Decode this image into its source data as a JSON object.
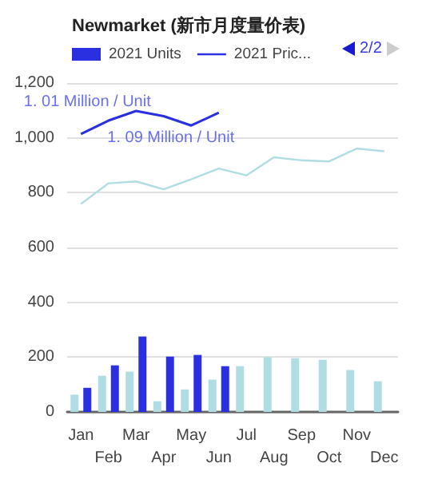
{
  "chart_data": {
    "type": "bar",
    "title": "Newmarket (新市月度量价表)",
    "categories": [
      "Jan",
      "Feb",
      "Mar",
      "Apr",
      "May",
      "Jun",
      "Jul",
      "Aug",
      "Sep",
      "Oct",
      "Nov",
      "Dec"
    ],
    "series": [
      {
        "color": "#b0dde4",
        "values": [
          63,
          132,
          147,
          39,
          82,
          118,
          167,
          200,
          196,
          190,
          153,
          112
        ]
      },
      {
        "name": "2021 Units",
        "color": "#2a2fe0",
        "values": [
          88,
          170,
          275,
          202,
          208,
          167,
          null,
          null,
          null,
          null,
          null,
          null
        ]
      },
      {
        "type": "line",
        "color": "#b0dde4",
        "values": [
          759,
          834,
          841,
          812,
          849,
          888,
          863,
          929,
          918,
          914,
          961,
          951
        ]
      },
      {
        "type": "line",
        "name": "2021 Pric...",
        "color": "#2a2fe0",
        "values": [
          1014,
          1063,
          1098,
          1079,
          1045,
          1092,
          null,
          null,
          null,
          null,
          null,
          null
        ]
      }
    ],
    "ylim": [
      0,
      1200
    ],
    "yticks": [
      {
        "value": 0,
        "label": "0"
      },
      {
        "value": 200,
        "label": "200"
      },
      {
        "value": 400,
        "label": "400"
      },
      {
        "value": 600,
        "label": "600"
      },
      {
        "value": 800,
        "label": "800"
      },
      {
        "value": 1000,
        "label": "1,000"
      },
      {
        "value": 1200,
        "label": "1,200"
      }
    ],
    "grid": "y",
    "legend": "top left",
    "marker": "none",
    "line_style": "solid",
    "annotations": [
      {
        "text": "1. 01 Million / Unit",
        "x": "Jan",
        "y": 1014
      },
      {
        "text": "1. 09 Million / Unit",
        "x": "Jun",
        "y": 1092
      },
      "2/2"
    ]
  }
}
